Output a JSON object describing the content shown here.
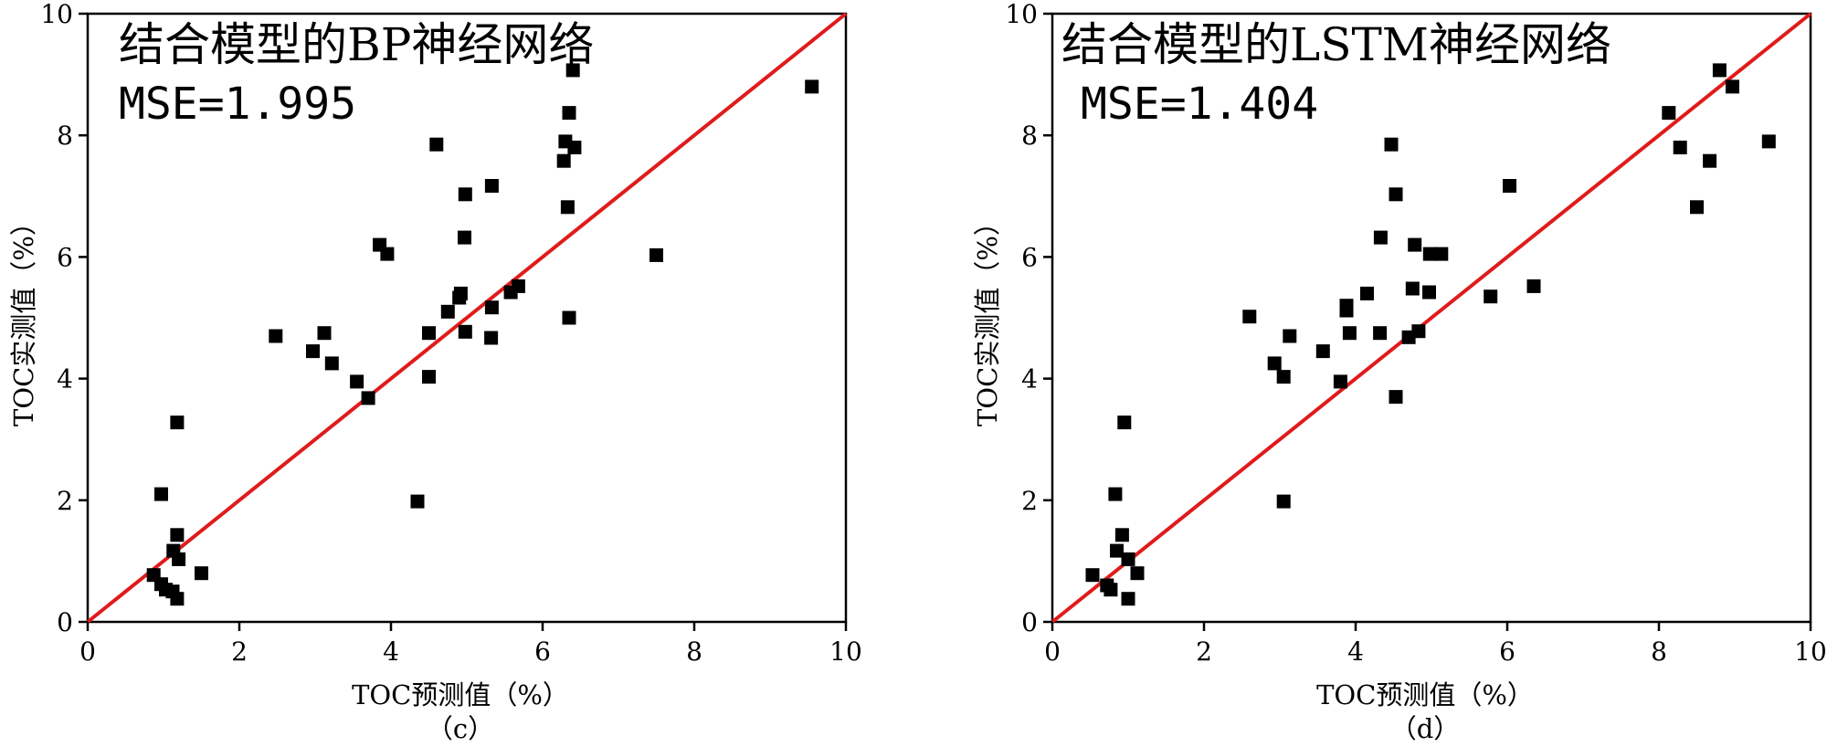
{
  "chart_data": [
    {
      "type": "scatter",
      "caption": "（c）",
      "title": "结合模型的BP神经网络",
      "mse_label": "MSE=1.995",
      "xlabel": "TOC预测值（%）",
      "ylabel": "TOC实测值（%）",
      "xlim": [
        0,
        10
      ],
      "ylim": [
        0,
        10
      ],
      "xticks": [
        "0",
        "2",
        "4",
        "6",
        "8",
        "10"
      ],
      "yticks": [
        "0",
        "2",
        "4",
        "6",
        "8",
        "10"
      ],
      "reference_line": {
        "x": [
          0,
          10
        ],
        "y": [
          0,
          10
        ],
        "color": "#e01b1b"
      },
      "marker_color": "#000000",
      "points": [
        [
          9.55,
          8.8
        ],
        [
          6.4,
          9.07
        ],
        [
          6.35,
          8.37
        ],
        [
          6.3,
          7.9
        ],
        [
          6.42,
          7.8
        ],
        [
          6.28,
          7.58
        ],
        [
          6.33,
          6.82
        ],
        [
          4.6,
          7.85
        ],
        [
          5.33,
          7.17
        ],
        [
          4.98,
          7.03
        ],
        [
          4.97,
          6.32
        ],
        [
          7.5,
          6.03
        ],
        [
          3.85,
          6.2
        ],
        [
          3.95,
          6.05
        ],
        [
          5.68,
          5.52
        ],
        [
          5.58,
          5.42
        ],
        [
          4.92,
          5.4
        ],
        [
          4.9,
          5.33
        ],
        [
          5.33,
          5.17
        ],
        [
          4.75,
          5.1
        ],
        [
          6.35,
          5.0
        ],
        [
          2.48,
          4.7
        ],
        [
          3.12,
          4.75
        ],
        [
          4.5,
          4.75
        ],
        [
          4.98,
          4.77
        ],
        [
          5.32,
          4.67
        ],
        [
          2.97,
          4.45
        ],
        [
          3.22,
          4.25
        ],
        [
          4.5,
          4.03
        ],
        [
          3.55,
          3.95
        ],
        [
          3.7,
          3.68
        ],
        [
          4.35,
          1.98
        ],
        [
          1.18,
          3.28
        ],
        [
          0.97,
          2.1
        ],
        [
          1.18,
          1.43
        ],
        [
          1.13,
          1.17
        ],
        [
          1.2,
          1.03
        ],
        [
          0.87,
          0.77
        ],
        [
          1.5,
          0.8
        ],
        [
          0.97,
          0.62
        ],
        [
          1.03,
          0.53
        ],
        [
          1.12,
          0.5
        ],
        [
          1.18,
          0.38
        ]
      ]
    },
    {
      "type": "scatter",
      "caption": "（d）",
      "title": "结合模型的LSTM神经网络",
      "mse_label": "MSE=1.404",
      "xlabel": "TOC预测值（%）",
      "ylabel": "TOC实测值（%）",
      "xlim": [
        0,
        10
      ],
      "ylim": [
        0,
        10
      ],
      "xticks": [
        "0",
        "2",
        "4",
        "6",
        "8",
        "10"
      ],
      "yticks": [
        "0",
        "2",
        "4",
        "6",
        "8",
        "10"
      ],
      "reference_line": {
        "x": [
          0,
          10
        ],
        "y": [
          0,
          10
        ],
        "color": "#e01b1b"
      },
      "marker_color": "#000000",
      "points": [
        [
          8.8,
          9.07
        ],
        [
          8.97,
          8.8
        ],
        [
          8.13,
          8.37
        ],
        [
          8.28,
          7.8
        ],
        [
          9.45,
          7.9
        ],
        [
          8.67,
          7.58
        ],
        [
          8.5,
          6.82
        ],
        [
          4.47,
          7.85
        ],
        [
          6.03,
          7.17
        ],
        [
          4.53,
          7.03
        ],
        [
          4.33,
          6.32
        ],
        [
          4.78,
          6.2
        ],
        [
          4.98,
          6.05
        ],
        [
          5.13,
          6.05
        ],
        [
          6.35,
          5.52
        ],
        [
          4.75,
          5.48
        ],
        [
          4.97,
          5.42
        ],
        [
          4.15,
          5.4
        ],
        [
          5.78,
          5.35
        ],
        [
          3.88,
          5.2
        ],
        [
          3.88,
          5.12
        ],
        [
          2.6,
          5.02
        ],
        [
          3.13,
          4.7
        ],
        [
          3.92,
          4.75
        ],
        [
          4.32,
          4.75
        ],
        [
          4.83,
          4.78
        ],
        [
          4.7,
          4.68
        ],
        [
          3.57,
          4.45
        ],
        [
          2.93,
          4.25
        ],
        [
          3.05,
          4.03
        ],
        [
          3.8,
          3.95
        ],
        [
          4.53,
          3.7
        ],
        [
          3.05,
          1.98
        ],
        [
          0.95,
          3.28
        ],
        [
          0.83,
          2.1
        ],
        [
          0.92,
          1.43
        ],
        [
          0.85,
          1.17
        ],
        [
          1.0,
          1.03
        ],
        [
          0.53,
          0.77
        ],
        [
          1.12,
          0.8
        ],
        [
          0.72,
          0.6
        ],
        [
          0.77,
          0.53
        ],
        [
          1.0,
          0.38
        ]
      ]
    }
  ]
}
